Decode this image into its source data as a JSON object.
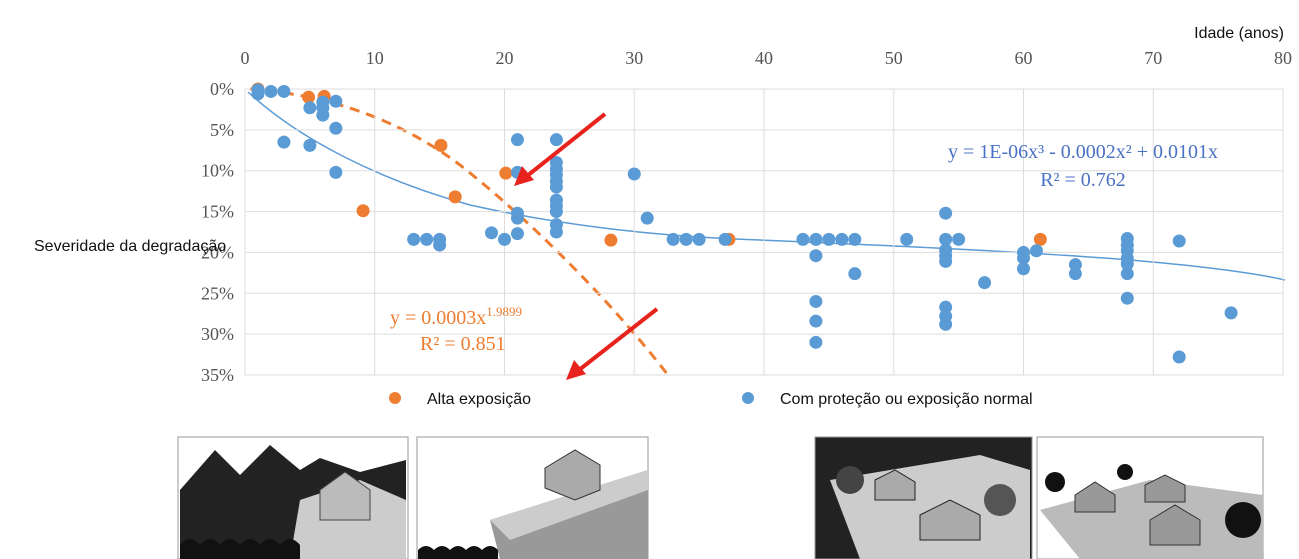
{
  "chart_data": {
    "type": "scatter",
    "x_label": "Idade (anos)",
    "y_label": "Severidade da degradação",
    "xaxis_position": "top",
    "y_inverted": true,
    "grid": true,
    "xlim": [
      0,
      80
    ],
    "xticks": [
      0,
      10,
      20,
      30,
      40,
      50,
      60,
      70,
      80
    ],
    "ylim": [
      0,
      35
    ],
    "yticks": [
      {
        "value": 0,
        "label": "0%"
      },
      {
        "value": 5,
        "label": "5%"
      },
      {
        "value": 10,
        "label": "10%"
      },
      {
        "value": 15,
        "label": "15%"
      },
      {
        "value": 20,
        "label": "20%"
      },
      {
        "value": 25,
        "label": "25%"
      },
      {
        "value": 30,
        "label": "30%"
      },
      {
        "value": 35,
        "label": "35%"
      }
    ],
    "series": [
      {
        "name": "Alta exposição",
        "color": "#ee7d31",
        "x": [
          1,
          4.9,
          6.1,
          9.1,
          15.1,
          16.2,
          20.1,
          28.2,
          37.3,
          61.3
        ],
        "values": [
          0,
          1.0,
          0.9,
          14.9,
          6.9,
          13.2,
          10.3,
          18.5,
          18.4,
          18.4
        ]
      },
      {
        "name": "Com proteção ou exposição normal",
        "color": "#5b9bd5",
        "x": [
          1,
          1,
          2,
          3,
          3,
          5,
          5,
          6,
          6,
          6,
          7,
          7,
          7,
          13,
          14,
          15,
          15,
          19,
          20,
          21,
          21,
          21,
          21,
          21,
          24,
          24,
          24,
          24,
          24,
          24,
          24,
          24,
          24,
          24,
          24,
          30,
          31,
          33,
          34,
          35,
          37,
          43,
          44,
          44,
          44,
          44,
          44,
          45,
          46,
          47,
          47,
          51,
          54,
          54,
          54,
          54,
          54,
          54,
          54,
          54,
          55,
          57,
          60,
          60,
          60,
          61,
          64,
          64,
          68,
          68,
          68,
          68,
          68,
          68,
          68,
          72,
          72,
          76
        ],
        "values": [
          0.1,
          0.6,
          0.3,
          0.3,
          6.5,
          2.3,
          6.9,
          1.6,
          2.3,
          3.2,
          1.5,
          4.8,
          10.2,
          18.4,
          18.4,
          18.4,
          19.1,
          17.6,
          18.4,
          6.2,
          10.2,
          15.2,
          15.8,
          17.7,
          6.2,
          9,
          9.8,
          10.5,
          11.3,
          12,
          13.6,
          14.3,
          15,
          16.6,
          17.5,
          10.4,
          15.8,
          18.4,
          18.4,
          18.4,
          18.4,
          18.4,
          18.4,
          20.4,
          26,
          28.4,
          31,
          18.4,
          18.4,
          18.4,
          22.6,
          18.4,
          15.2,
          18.4,
          19.7,
          20.4,
          21.1,
          26.7,
          27.8,
          28.8,
          18.4,
          23.7,
          20,
          20.7,
          22,
          19.8,
          21.5,
          22.6,
          18.3,
          19.1,
          19.8,
          20.7,
          21.4,
          22.6,
          25.6,
          18.6,
          32.8,
          27.4
        ]
      }
    ],
    "annotations": {
      "blue_equation": "y = 1E-06x³ - 0.0002x² + 0.0101x",
      "blue_r2": "R² = 0.762",
      "orange_equation": "y = 0.0003x",
      "orange_exponent": "1.9899",
      "orange_r2": "R² = 0.851"
    }
  }
}
